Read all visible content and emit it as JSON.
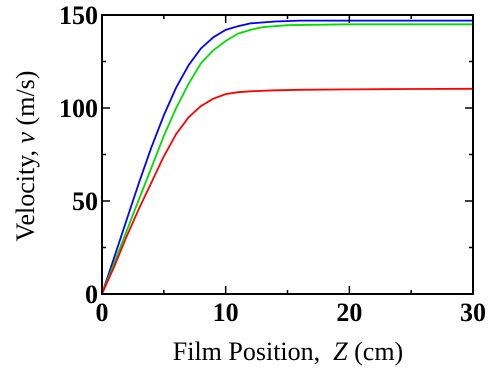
{
  "chart_data": {
    "type": "line",
    "xlabel": {
      "prefix": "Film Position,  ",
      "symbol": "Z",
      "suffix": " (cm)"
    },
    "ylabel": {
      "prefix": "Velocity, ",
      "symbol": "v",
      "suffix": " (m/s)"
    },
    "xlim": [
      0,
      30
    ],
    "ylim": [
      0,
      150
    ],
    "xticks": [
      0,
      10,
      20,
      30
    ],
    "yticks": [
      0,
      50,
      100,
      150
    ],
    "grid": false,
    "series": [
      {
        "color": "#0000ff",
        "points": [
          [
            0,
            0
          ],
          [
            1,
            20
          ],
          [
            2,
            40
          ],
          [
            3,
            60
          ],
          [
            4,
            79
          ],
          [
            5,
            96
          ],
          [
            6,
            111
          ],
          [
            7,
            123
          ],
          [
            8,
            132
          ],
          [
            9,
            138
          ],
          [
            10,
            142
          ],
          [
            11,
            144
          ],
          [
            12,
            145.5
          ],
          [
            14,
            146.5
          ],
          [
            16,
            147
          ],
          [
            20,
            147
          ],
          [
            25,
            147
          ],
          [
            30,
            147
          ]
        ]
      },
      {
        "color": "#00dd00",
        "points": [
          [
            0,
            0
          ],
          [
            1,
            17
          ],
          [
            2,
            34
          ],
          [
            3,
            51
          ],
          [
            4,
            68
          ],
          [
            5,
            85
          ],
          [
            6,
            100
          ],
          [
            7,
            113
          ],
          [
            8,
            124
          ],
          [
            9,
            131
          ],
          [
            10,
            136
          ],
          [
            11,
            140
          ],
          [
            12,
            142
          ],
          [
            13,
            143.5
          ],
          [
            15,
            144.5
          ],
          [
            20,
            145
          ],
          [
            25,
            145
          ],
          [
            30,
            145
          ]
        ]
      },
      {
        "color": "#ff0000",
        "points": [
          [
            0,
            0
          ],
          [
            1,
            15
          ],
          [
            2,
            31
          ],
          [
            3,
            46
          ],
          [
            4,
            60
          ],
          [
            5,
            74
          ],
          [
            6,
            86
          ],
          [
            7,
            95
          ],
          [
            8,
            101
          ],
          [
            9,
            105
          ],
          [
            10,
            107.5
          ],
          [
            11,
            108.5
          ],
          [
            12,
            109
          ],
          [
            14,
            109.5
          ],
          [
            16,
            109.8
          ],
          [
            20,
            110
          ],
          [
            25,
            110.2
          ],
          [
            30,
            110.3
          ]
        ]
      }
    ]
  }
}
